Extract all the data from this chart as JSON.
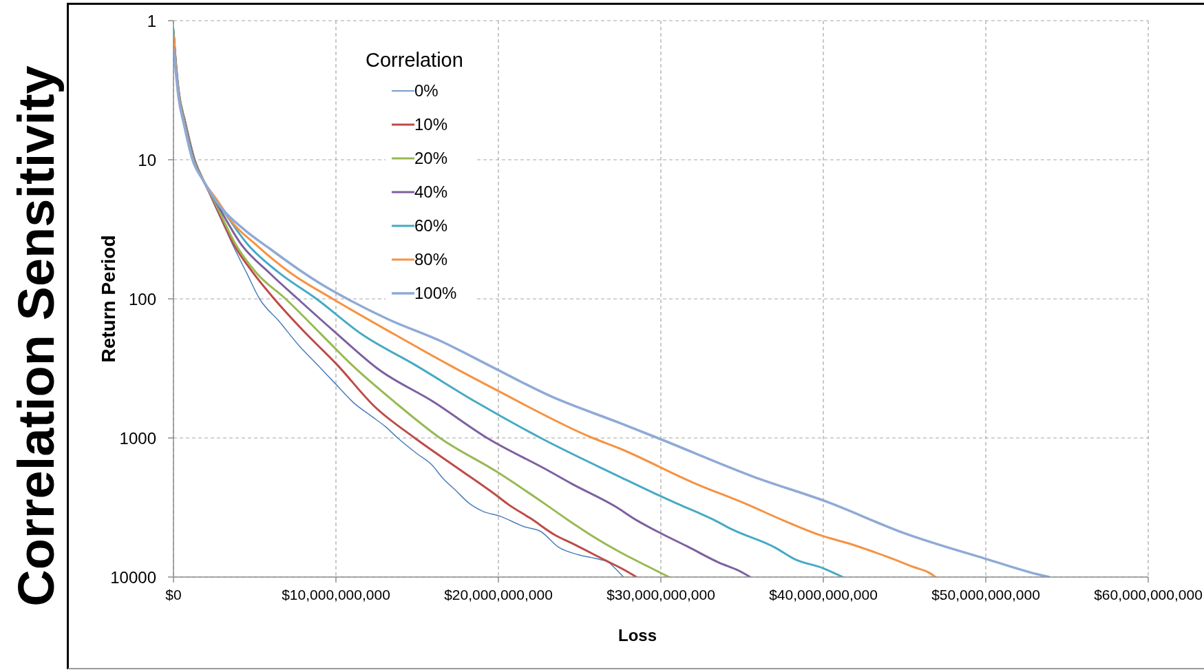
{
  "chart_data": {
    "type": "line",
    "title": "Correlation Sensitivity",
    "xlabel": "Loss",
    "ylabel": "Return Period",
    "legend_title": "Correlation",
    "xlim": [
      0,
      60000000000
    ],
    "xticks": [
      {
        "value": 0,
        "label": "$0"
      },
      {
        "value": 10000000000,
        "label": "$10,000,000,000"
      },
      {
        "value": 20000000000,
        "label": "$20,000,000,000"
      },
      {
        "value": 30000000000,
        "label": "$30,000,000,000"
      },
      {
        "value": 40000000000,
        "label": "$40,000,000,000"
      },
      {
        "value": 50000000000,
        "label": "$50,000,000,000"
      },
      {
        "value": 60000000000,
        "label": "$60,000,000,000"
      }
    ],
    "ylim": [
      10000,
      1
    ],
    "yticks": [
      1,
      10,
      100,
      1000,
      10000
    ],
    "log": true,
    "grid": true,
    "legend": "top left",
    "series": [
      {
        "name": "0%",
        "color": "#4a7ebb",
        "x": [
          0,
          140000000,
          340000000,
          740000000,
          1330000000,
          1850000000,
          2420000000,
          3000000000,
          3650000000,
          4500000000,
          5300000000,
          6500000000,
          7700000000,
          9000000000,
          9900000000,
          11100000000,
          12200000000,
          13050000000,
          13800000000,
          15000000000,
          15900000000,
          16600000000,
          17400000000,
          18200000000,
          19000000000,
          20100000000,
          21600000000,
          22600000000,
          23700000000,
          24900000000,
          26200000000,
          26800000000,
          27200000000,
          27700000000
        ],
        "values": [
          1.15,
          1.9,
          3.2,
          5.3,
          10,
          14,
          20,
          28,
          41,
          65,
          100,
          145,
          215,
          310,
          400,
          560,
          700,
          830,
          1000,
          1300,
          1560,
          1960,
          2400,
          2950,
          3350,
          3650,
          4350,
          4700,
          6100,
          6900,
          7450,
          7850,
          8700,
          10000
        ]
      },
      {
        "name": "10%",
        "color": "#be4b48",
        "x": [
          0,
          140000000,
          330000000,
          720000000,
          1300000000,
          1840000000,
          2480000000,
          3730000000,
          4900000000,
          6200000000,
          8000000000,
          10100000000,
          12350000000,
          14850000000,
          17500000000,
          19900000000,
          20600000000,
          22000000000,
          23500000000,
          24500000000,
          26600000000,
          27600000000,
          28500000000
        ],
        "values": [
          1.2,
          1.95,
          3.25,
          5.35,
          10,
          14,
          20,
          41,
          65,
          100,
          170,
          300,
          590,
          1000,
          1650,
          2600,
          3000,
          3800,
          5000,
          5700,
          7600,
          8700,
          10000
        ]
      },
      {
        "name": "20%",
        "color": "#98b954",
        "x": [
          0,
          130000000,
          330000000,
          710000000,
          1280000000,
          1830000000,
          2530000000,
          3850000000,
          5100000000,
          6900000000,
          9100000000,
          11000000000,
          13600000000,
          16400000000,
          19900000000,
          22900000000,
          24300000000,
          25700000000,
          27460000000,
          29300000000,
          30500000000
        ],
        "values": [
          1.2,
          1.95,
          3.3,
          5.4,
          10,
          14,
          20,
          41,
          65,
          100,
          180,
          300,
          550,
          1000,
          1750,
          3000,
          3900,
          5000,
          6600,
          8500,
          10000
        ]
      },
      {
        "name": "40%",
        "color": "#7d60a0",
        "x": [
          0,
          130000000,
          320000000,
          700000000,
          1260000000,
          1820000000,
          2600000000,
          4200000000,
          5900000000,
          7650000000,
          10100000000,
          12600000000,
          16000000000,
          19300000000,
          23000000000,
          24500000000,
          27200000000,
          28500000000,
          30000000000,
          31600000000,
          33600000000,
          34800000000,
          35500000000
        ],
        "values": [
          1.2,
          1.95,
          3.3,
          5.4,
          10,
          14,
          20,
          41,
          65,
          100,
          180,
          320,
          550,
          1000,
          1700,
          2130,
          3110,
          3900,
          4850,
          6000,
          7900,
          9000,
          10000
        ]
      },
      {
        "name": "60%",
        "color": "#46aac5",
        "x": [
          0,
          130000000,
          320000000,
          690000000,
          1240000000,
          1820000000,
          2700000000,
          4600000000,
          6500000000,
          8800000000,
          11600000000,
          14900000000,
          18600000000,
          22600000000,
          27460000000,
          29600000000,
          31100000000,
          33300000000,
          34300000000,
          37100000000,
          38200000000,
          40000000000,
          41200000000
        ],
        "values": [
          1.15,
          1.95,
          3.3,
          5.45,
          10,
          14,
          20,
          41,
          65,
          100,
          180,
          300,
          550,
          1000,
          1900,
          2500,
          3000,
          3900,
          4500,
          6200,
          7400,
          8650,
          10000
        ]
      },
      {
        "name": "80%",
        "color": "#f69240",
        "x": [
          0,
          120000000,
          310000000,
          670000000,
          1200000000,
          1820000000,
          2750000000,
          3600000000,
          5100000000,
          7200000000,
          9800000000,
          13600000000,
          17000000000,
          20000000000,
          25800000000,
          27460000000,
          32000000000,
          35300000000,
          37500000000,
          39800000000,
          41700000000,
          44000000000,
          45600000000,
          46500000000,
          46900000000
        ],
        "values": [
          1.25,
          2,
          3.35,
          5.5,
          10,
          14,
          20,
          28,
          41,
          65,
          100,
          180,
          300,
          460,
          1000,
          1190,
          2100,
          3000,
          3900,
          5000,
          5800,
          7200,
          8500,
          9300,
          10000
        ]
      },
      {
        "name": "100%",
        "color": "#8eaad6",
        "x": [
          0,
          120000000,
          300000000,
          650000000,
          1170000000,
          1820000000,
          2920000000,
          4390000000,
          5860000000,
          7580000000,
          9300000000,
          10700000000,
          13200000000,
          16600000000,
          19400000000,
          23200000000,
          27460000000,
          29800000000,
          35700000000,
          40300000000,
          44900000000,
          50000000000,
          53400000000,
          53900000000
        ],
        "values": [
          1.6,
          2.2,
          3.5,
          5.6,
          10,
          14,
          22,
          32,
          43,
          60,
          81,
          100,
          140,
          205,
          300,
          500,
          780,
          1000,
          1900,
          2900,
          4800,
          7400,
          9700,
          10000
        ]
      }
    ]
  }
}
